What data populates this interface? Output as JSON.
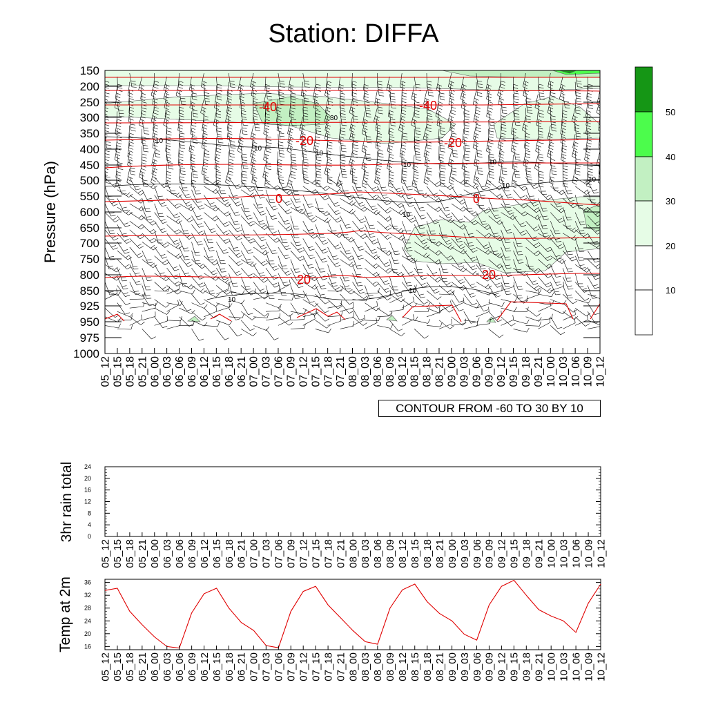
{
  "title": "Station: DIFFA",
  "colors": {
    "shade_20": "#e6fce6",
    "shade_30": "#c2f0c2",
    "shade_40": "#4cfc4c",
    "shade_50": "#159615",
    "temp_contour": "#e00000",
    "wind_barb": "#000000"
  },
  "main_plot": {
    "ylabel": "Pressure (hPa)",
    "pressure_levels": [
      "150",
      "200",
      "250",
      "300",
      "350",
      "400",
      "450",
      "500",
      "550",
      "600",
      "650",
      "700",
      "750",
      "800",
      "850",
      "925",
      "950",
      "975",
      "1000"
    ],
    "time_labels": [
      "05_12",
      "05_15",
      "05_18",
      "05_21",
      "06_00",
      "06_03",
      "06_06",
      "06_09",
      "06_12",
      "06_15",
      "06_18",
      "06_21",
      "07_00",
      "07_03",
      "07_06",
      "07_09",
      "07_12",
      "07_15",
      "07_18",
      "07_21",
      "08_00",
      "08_03",
      "08_06",
      "08_09",
      "08_12",
      "08_15",
      "08_18",
      "08_21",
      "09_00",
      "09_03",
      "09_06",
      "09_09",
      "09_12",
      "09_15",
      "09_18",
      "09_21",
      "10_00",
      "10_03",
      "10_06",
      "10_09",
      "10_12"
    ],
    "contour_note": "CONTOUR FROM -60 TO 30 BY 10",
    "temp_contour_labels": [
      "-40",
      "-40",
      "-20",
      "-20",
      "0",
      "0",
      "20",
      "20"
    ],
    "rh_contour_labels": [
      "10",
      "10",
      "10",
      "10",
      "10",
      "10",
      "10",
      "10",
      "10",
      "10",
      "30"
    ]
  },
  "colorbar": {
    "levels": [
      "10",
      "20",
      "30",
      "40",
      "50"
    ]
  },
  "chart_data": [
    {
      "type": "line",
      "title": "",
      "ylabel": "3hr rain total",
      "ylim": [
        0,
        24
      ],
      "yticks": [
        "0",
        "4",
        "8",
        "12",
        "16",
        "20",
        "24"
      ],
      "x": [
        "05_12",
        "05_15",
        "05_18",
        "05_21",
        "06_00",
        "06_03",
        "06_06",
        "06_09",
        "06_12",
        "06_15",
        "06_18",
        "06_21",
        "07_00",
        "07_03",
        "07_06",
        "07_09",
        "07_12",
        "07_15",
        "07_18",
        "07_21",
        "08_00",
        "08_03",
        "08_06",
        "08_09",
        "08_12",
        "08_15",
        "08_18",
        "08_21",
        "09_00",
        "09_03",
        "09_06",
        "09_09",
        "09_12",
        "09_15",
        "09_18",
        "09_21",
        "10_00",
        "10_03",
        "10_06",
        "10_09",
        "10_12"
      ],
      "values": [
        0,
        0,
        0,
        0,
        0,
        0,
        0,
        0,
        0,
        0,
        0,
        0,
        0,
        0,
        0,
        0,
        0,
        0,
        0,
        0,
        0,
        0,
        0,
        0,
        0,
        0,
        0,
        0,
        0,
        0,
        0,
        0,
        0,
        0,
        0,
        0,
        0,
        0,
        0,
        0,
        0
      ]
    },
    {
      "type": "line",
      "title": "",
      "ylabel": "Temp at 2m",
      "ylim": [
        15,
        37
      ],
      "yticks": [
        "16",
        "20",
        "24",
        "28",
        "32",
        "36"
      ],
      "x": [
        "05_12",
        "05_15",
        "05_18",
        "05_21",
        "06_00",
        "06_03",
        "06_06",
        "06_09",
        "06_12",
        "06_15",
        "06_18",
        "06_21",
        "07_00",
        "07_03",
        "07_06",
        "07_09",
        "07_12",
        "07_15",
        "07_18",
        "07_21",
        "08_00",
        "08_03",
        "08_06",
        "08_09",
        "08_12",
        "08_15",
        "08_18",
        "08_21",
        "09_00",
        "09_03",
        "09_06",
        "09_09",
        "09_12",
        "09_15",
        "09_18",
        "09_21",
        "10_00",
        "10_03",
        "10_06",
        "10_09",
        "10_12"
      ],
      "values": [
        33.5,
        34.2,
        27,
        22.8,
        19,
        16,
        15.5,
        26.5,
        32.5,
        34.2,
        28,
        23.5,
        21,
        16.3,
        15.6,
        27,
        33.2,
        34.8,
        29,
        25,
        21,
        17.5,
        16.7,
        28,
        33.7,
        35.5,
        30,
        26.3,
        24,
        19.8,
        18,
        29,
        34.8,
        36.7,
        32,
        27.5,
        25.5,
        24,
        20.4,
        29.5,
        35.5
      ],
      "color": "#e00000"
    }
  ]
}
